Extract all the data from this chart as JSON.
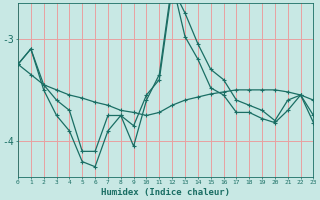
{
  "xlabel": "Humidex (Indice chaleur)",
  "background_color": "#c8e8e4",
  "grid_color": "#e8a0a0",
  "line_color": "#1a6e64",
  "x_values": [
    0,
    1,
    2,
    3,
    4,
    5,
    6,
    7,
    8,
    9,
    10,
    11,
    12,
    13,
    14,
    15,
    16,
    17,
    18,
    19,
    20,
    21,
    22,
    23
  ],
  "series1": [
    -3.25,
    -3.1,
    -3.45,
    -3.6,
    -3.7,
    -4.1,
    -4.1,
    -3.75,
    -3.75,
    -3.85,
    -3.55,
    -3.4,
    -2.5,
    -2.75,
    -3.05,
    -3.3,
    -3.4,
    -3.6,
    -3.65,
    -3.7,
    -3.8,
    -3.6,
    -3.55,
    -3.75
  ],
  "series2": [
    -3.25,
    -3.35,
    -3.45,
    -3.5,
    -3.55,
    -3.58,
    -3.62,
    -3.65,
    -3.7,
    -3.72,
    -3.75,
    -3.72,
    -3.65,
    -3.6,
    -3.57,
    -3.54,
    -3.52,
    -3.5,
    -3.5,
    -3.5,
    -3.5,
    -3.52,
    -3.55,
    -3.6
  ],
  "series3": [
    -3.25,
    -3.1,
    -3.5,
    -3.75,
    -3.9,
    -4.2,
    -4.25,
    -3.9,
    -3.75,
    -4.05,
    -3.6,
    -3.35,
    -2.45,
    -2.98,
    -3.2,
    -3.48,
    -3.55,
    -3.72,
    -3.72,
    -3.78,
    -3.82,
    -3.7,
    -3.55,
    -3.82
  ],
  "ylim": [
    -4.35,
    -2.65
  ],
  "yticks": [
    -4.0,
    -3.0
  ],
  "xlim": [
    0,
    23
  ]
}
